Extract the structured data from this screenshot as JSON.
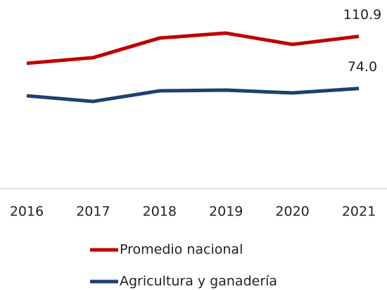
{
  "chart_data": {
    "type": "line",
    "categories": [
      "2016",
      "2017",
      "2018",
      "2019",
      "2020",
      "2021"
    ],
    "series": [
      {
        "name": "Promedio nacional",
        "color": "#c00000",
        "values": [
          91.8,
          95.8,
          109.7,
          113.2,
          105.2,
          110.9
        ],
        "value_labels": [
          null,
          null,
          null,
          null,
          null,
          "110.9"
        ]
      },
      {
        "name": "Agricultura y ganadería",
        "color": "#1f3f6e",
        "values": [
          68.8,
          64.8,
          72.3,
          72.8,
          70.8,
          74.0
        ],
        "value_labels": [
          null,
          null,
          null,
          null,
          null,
          "74.0"
        ]
      }
    ],
    "ylim": [
      0,
      130
    ]
  }
}
